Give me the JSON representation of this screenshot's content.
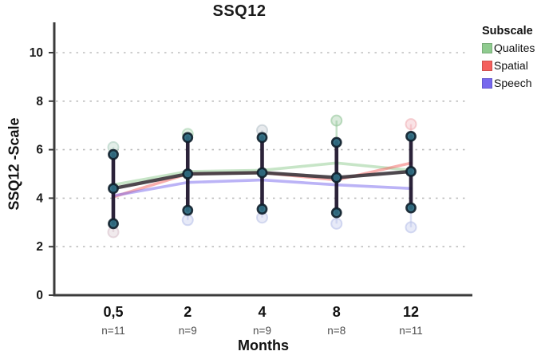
{
  "chart_data": {
    "type": "line",
    "title": "SSQ12",
    "xlabel": "Months",
    "ylabel": "SSQ12 -Scale",
    "ylim": [
      0,
      11
    ],
    "y_ticks": [
      0,
      2,
      4,
      6,
      8,
      10
    ],
    "grid": "dotted-horizontal",
    "legend_position": "right",
    "categories": [
      "0,5",
      "2",
      "4",
      "8",
      "12"
    ],
    "n_labels": [
      "n=11",
      "n=9",
      "n=9",
      "n=8",
      "n=11"
    ],
    "series": [
      {
        "name": "Qualites",
        "color": "#8FCB8F",
        "values": [
          4.55,
          5.1,
          5.15,
          5.45,
          5.15
        ]
      },
      {
        "name": "Spatial",
        "color": "#F4605D",
        "values": [
          4.05,
          5.0,
          5.05,
          4.75,
          5.45
        ]
      },
      {
        "name": "Speech",
        "color": "#7768EE",
        "values": [
          4.1,
          4.65,
          4.75,
          4.55,
          4.4
        ]
      }
    ],
    "mean_line": {
      "name": "overall-mean",
      "color": "#3f383f",
      "values": [
        4.4,
        5.0,
        5.05,
        4.85,
        5.1
      ]
    },
    "error_bars": {
      "color": "#190f28",
      "low": [
        2.95,
        3.5,
        3.55,
        3.4,
        3.6
      ],
      "high": [
        5.8,
        6.5,
        6.5,
        6.3,
        6.55
      ]
    },
    "marker": {
      "fill": "#2e6a80",
      "stroke": "#101f2b"
    },
    "outlier_points": {
      "top": [
        {
          "x_index": 0,
          "value": 6.1,
          "color": "#aecfc0"
        },
        {
          "x_index": 1,
          "value": 6.65,
          "color": "#a8d3b0"
        },
        {
          "x_index": 2,
          "value": 6.8,
          "color": "#b9c4cc"
        },
        {
          "x_index": 3,
          "value": 7.2,
          "color": "#94c79a"
        },
        {
          "x_index": 4,
          "value": 7.05,
          "color": "#f0b0b6"
        }
      ],
      "bottom": [
        {
          "x_index": 0,
          "value": 2.6,
          "color": "#d8c2cc"
        },
        {
          "x_index": 1,
          "value": 3.1,
          "color": "#b9c2ea"
        },
        {
          "x_index": 2,
          "value": 3.2,
          "color": "#bcc4e8"
        },
        {
          "x_index": 3,
          "value": 2.95,
          "color": "#b9c2ea"
        },
        {
          "x_index": 4,
          "value": 2.8,
          "color": "#b9c2ea"
        }
      ]
    },
    "axis_color": "#3b3b3b",
    "grid_color": "#bdbdbd",
    "n_label_color": "#4d4d4d"
  },
  "legend": {
    "title": "Subscale",
    "items": [
      {
        "label": "Qualites",
        "color": "#8FCB8F"
      },
      {
        "label": "Spatial",
        "color": "#F4605D"
      },
      {
        "label": "Speech",
        "color": "#7768EE"
      }
    ]
  }
}
